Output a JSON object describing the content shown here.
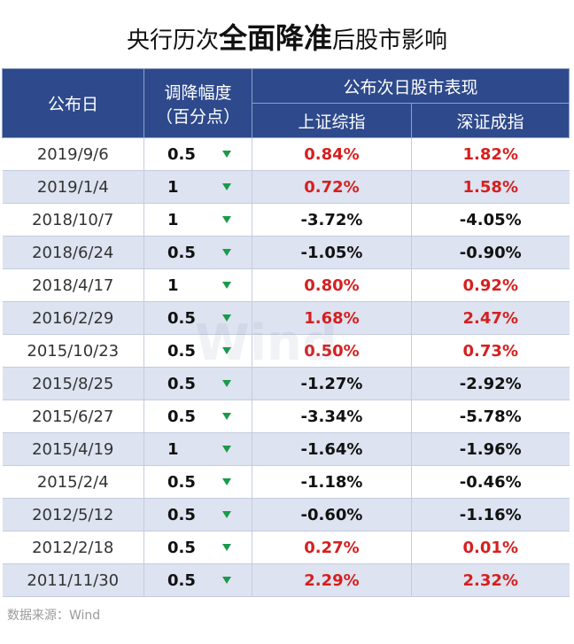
{
  "title": {
    "prefix": "央行历次",
    "emphasis": "全面降准",
    "suffix": "后股市影响"
  },
  "table": {
    "headers": {
      "date": "公布日",
      "cut_line1": "调降幅度",
      "cut_line2": "（百分点）",
      "group": "公布次日股市表现",
      "sh": "上证综指",
      "sz": "深证成指"
    },
    "rows": [
      {
        "date": "2019/9/6",
        "cut": "0.5",
        "sh": "0.84%",
        "sz": "1.82%",
        "sh_up": true,
        "sz_up": true
      },
      {
        "date": "2019/1/4",
        "cut": "1",
        "sh": "0.72%",
        "sz": "1.58%",
        "sh_up": true,
        "sz_up": true
      },
      {
        "date": "2018/10/7",
        "cut": "1",
        "sh": "-3.72%",
        "sz": "-4.05%",
        "sh_up": false,
        "sz_up": false
      },
      {
        "date": "2018/6/24",
        "cut": "0.5",
        "sh": "-1.05%",
        "sz": "-0.90%",
        "sh_up": false,
        "sz_up": false
      },
      {
        "date": "2018/4/17",
        "cut": "1",
        "sh": "0.80%",
        "sz": "0.92%",
        "sh_up": true,
        "sz_up": true
      },
      {
        "date": "2016/2/29",
        "cut": "0.5",
        "sh": "1.68%",
        "sz": "2.47%",
        "sh_up": true,
        "sz_up": true
      },
      {
        "date": "2015/10/23",
        "cut": "0.5",
        "sh": "0.50%",
        "sz": "0.73%",
        "sh_up": true,
        "sz_up": true
      },
      {
        "date": "2015/8/25",
        "cut": "0.5",
        "sh": "-1.27%",
        "sz": "-2.92%",
        "sh_up": false,
        "sz_up": false
      },
      {
        "date": "2015/6/27",
        "cut": "0.5",
        "sh": "-3.34%",
        "sz": "-5.78%",
        "sh_up": false,
        "sz_up": false
      },
      {
        "date": "2015/4/19",
        "cut": "1",
        "sh": "-1.64%",
        "sz": "-1.96%",
        "sh_up": false,
        "sz_up": false
      },
      {
        "date": "2015/2/4",
        "cut": "0.5",
        "sh": "-1.18%",
        "sz": "-0.46%",
        "sh_up": false,
        "sz_up": false
      },
      {
        "date": "2012/5/12",
        "cut": "0.5",
        "sh": "-0.60%",
        "sz": "-1.16%",
        "sh_up": false,
        "sz_up": false
      },
      {
        "date": "2012/2/18",
        "cut": "0.5",
        "sh": "0.27%",
        "sz": "0.01%",
        "sh_up": true,
        "sz_up": true
      },
      {
        "date": "2011/11/30",
        "cut": "0.5",
        "sh": "2.29%",
        "sz": "2.32%",
        "sh_up": true,
        "sz_up": true
      }
    ]
  },
  "source": "数据来源：Wind",
  "watermark": "Wind",
  "icons": {
    "cut_marker": "down-triangle-icon"
  },
  "colors": {
    "header_bg": "#2e4a8c",
    "row_alt_bg": "#dde3f0",
    "positive": "#d61f1f",
    "negative": "#111111",
    "triangle": "#1a9a4a"
  }
}
